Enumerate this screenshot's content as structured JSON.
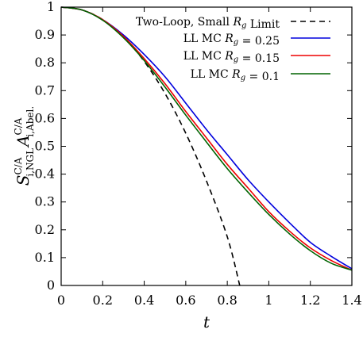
{
  "chart_data": {
    "type": "line",
    "xlabel": "t",
    "ylabel": "S^{C/A}_{i,NGL} A^{C/A}_{i,Abel.}",
    "xlim": [
      0,
      1.4
    ],
    "ylim": [
      0,
      1
    ],
    "x_ticks": [
      "0",
      "0.2",
      "0.4",
      "0.6",
      "0.8",
      "1",
      "1.2",
      "1.4"
    ],
    "y_ticks": [
      "0",
      "0.1",
      "0.2",
      "0.3",
      "0.4",
      "0.5",
      "0.6",
      "0.7",
      "0.8",
      "0.9",
      "1"
    ],
    "legend_position": "top-right",
    "series": [
      {
        "name": "Two-Loop, Small R_g Limit",
        "color": "#000000",
        "dash": "dashed",
        "x": [
          0,
          0.1,
          0.2,
          0.3,
          0.4,
          0.5,
          0.6,
          0.7,
          0.8,
          0.86
        ],
        "y": [
          1.0,
          0.99,
          0.955,
          0.893,
          0.805,
          0.69,
          0.547,
          0.375,
          0.175,
          0.0
        ]
      },
      {
        "name": "LL MC R_g = 0.25",
        "color": "#0000dd",
        "dash": "solid",
        "x": [
          0,
          0.1,
          0.2,
          0.3,
          0.4,
          0.5,
          0.6,
          0.7,
          0.8,
          0.9,
          1.0,
          1.1,
          1.2,
          1.3,
          1.4
        ],
        "y": [
          1.0,
          0.99,
          0.955,
          0.9,
          0.83,
          0.75,
          0.655,
          0.56,
          0.47,
          0.38,
          0.3,
          0.225,
          0.155,
          0.105,
          0.06
        ]
      },
      {
        "name": "LL MC R_g = 0.15",
        "color": "#ee0000",
        "dash": "solid",
        "x": [
          0,
          0.1,
          0.2,
          0.3,
          0.4,
          0.5,
          0.6,
          0.7,
          0.8,
          0.9,
          1.0,
          1.1,
          1.2,
          1.3,
          1.4
        ],
        "y": [
          1.0,
          0.99,
          0.955,
          0.895,
          0.815,
          0.725,
          0.625,
          0.53,
          0.435,
          0.35,
          0.265,
          0.195,
          0.135,
          0.09,
          0.055
        ]
      },
      {
        "name": "LL MC R_g = 0.1",
        "color": "#006400",
        "dash": "solid",
        "x": [
          0,
          0.1,
          0.2,
          0.3,
          0.4,
          0.5,
          0.6,
          0.7,
          0.8,
          0.9,
          1.0,
          1.1,
          1.2,
          1.3,
          1.4
        ],
        "y": [
          1.0,
          0.99,
          0.953,
          0.89,
          0.808,
          0.713,
          0.612,
          0.515,
          0.42,
          0.335,
          0.255,
          0.185,
          0.125,
          0.08,
          0.055
        ]
      }
    ]
  }
}
